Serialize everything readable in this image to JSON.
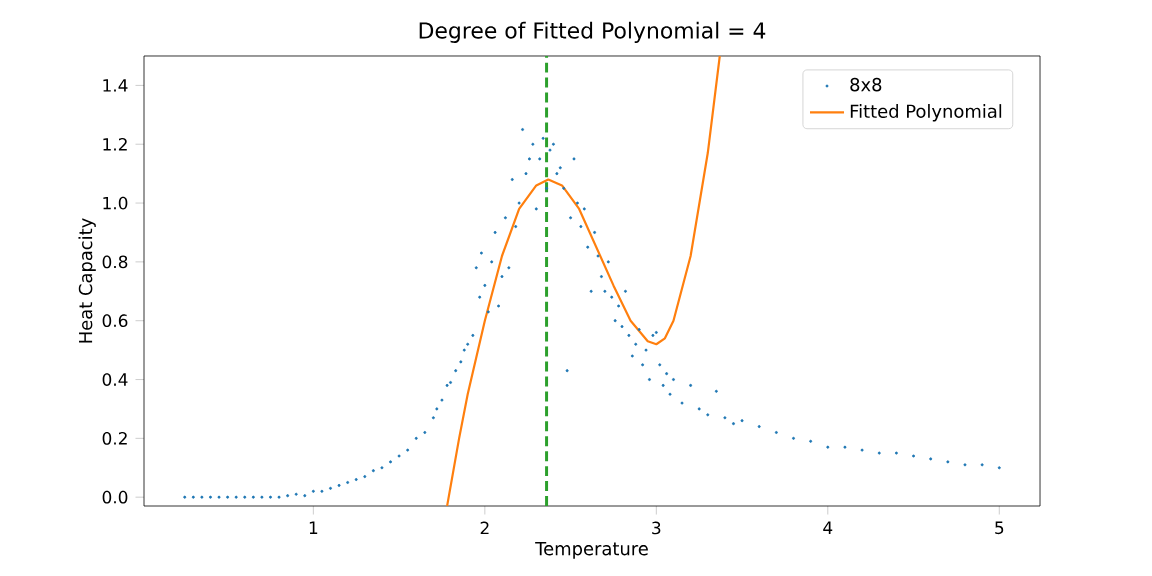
{
  "chart_data": {
    "type": "scatter",
    "title": "Degree of Fitted Polynomial = 4",
    "xlabel": "Temperature",
    "ylabel": "Heat Capacity",
    "xlim": [
      0.0125,
      5.2375
    ],
    "ylim": [
      -0.03,
      1.5
    ],
    "xticks": [
      1,
      2,
      3,
      4,
      5
    ],
    "yticks": [
      {
        "value": 0,
        "label": "0.0"
      },
      {
        "value": 0.2,
        "label": "0.2"
      },
      {
        "value": 0.4,
        "label": "0.4"
      },
      {
        "value": 0.6,
        "label": "0.6"
      },
      {
        "value": 0.8,
        "label": "0.8"
      },
      {
        "value": 1.0,
        "label": "1.0"
      },
      {
        "value": 1.2,
        "label": "1.2"
      },
      {
        "value": 1.4,
        "label": "1.4"
      }
    ],
    "legend": "top right",
    "grid": false,
    "series": [
      {
        "name": "8x8",
        "marker": "circle",
        "color": "#1f77b4",
        "x": [
          0.25,
          0.3,
          0.35,
          0.4,
          0.45,
          0.5,
          0.55,
          0.6,
          0.65,
          0.7,
          0.75,
          0.8,
          0.85,
          0.9,
          0.95,
          1.0,
          1.05,
          1.1,
          1.15,
          1.2,
          1.25,
          1.3,
          1.35,
          1.4,
          1.45,
          1.5,
          1.55,
          1.6,
          1.65,
          1.7,
          1.72,
          1.75,
          1.78,
          1.8,
          1.83,
          1.86,
          1.88,
          1.9,
          1.93,
          1.95,
          1.97,
          1.98,
          2.0,
          2.02,
          2.04,
          2.06,
          2.08,
          2.1,
          2.12,
          2.14,
          2.16,
          2.18,
          2.2,
          2.22,
          2.24,
          2.26,
          2.28,
          2.3,
          2.32,
          2.34,
          2.36,
          2.38,
          2.4,
          2.42,
          2.44,
          2.46,
          2.48,
          2.5,
          2.52,
          2.54,
          2.56,
          2.58,
          2.6,
          2.62,
          2.64,
          2.66,
          2.68,
          2.7,
          2.72,
          2.74,
          2.76,
          2.78,
          2.8,
          2.82,
          2.84,
          2.86,
          2.88,
          2.9,
          2.92,
          2.94,
          2.96,
          2.98,
          3.0,
          3.02,
          3.04,
          3.06,
          3.08,
          3.1,
          3.15,
          3.2,
          3.25,
          3.3,
          3.35,
          3.4,
          3.45,
          3.5,
          3.6,
          3.7,
          3.8,
          3.9,
          4.0,
          4.1,
          4.2,
          4.3,
          4.4,
          4.5,
          4.6,
          4.7,
          4.8,
          4.9,
          5.0
        ],
        "values": [
          0,
          0,
          0,
          0,
          0,
          0,
          0,
          0,
          0,
          0,
          0,
          0,
          0.005,
          0.01,
          0.005,
          0.02,
          0.02,
          0.03,
          0.04,
          0.05,
          0.06,
          0.07,
          0.09,
          0.1,
          0.12,
          0.14,
          0.16,
          0.2,
          0.22,
          0.27,
          0.3,
          0.33,
          0.38,
          0.39,
          0.43,
          0.46,
          0.5,
          0.52,
          0.55,
          0.78,
          0.68,
          0.83,
          0.72,
          0.63,
          0.8,
          0.9,
          0.65,
          0.75,
          0.95,
          0.78,
          1.08,
          0.92,
          1.0,
          1.25,
          1.1,
          1.15,
          1.2,
          0.98,
          1.15,
          1.22,
          1.05,
          1.18,
          1.2,
          1.1,
          1.12,
          1.05,
          0.43,
          0.95,
          1.15,
          1.0,
          0.92,
          0.98,
          0.85,
          0.7,
          0.9,
          0.82,
          0.75,
          0.7,
          0.8,
          0.68,
          0.6,
          0.65,
          0.58,
          0.7,
          0.55,
          0.48,
          0.52,
          0.57,
          0.45,
          0.5,
          0.4,
          0.55,
          0.56,
          0.45,
          0.38,
          0.42,
          0.35,
          0.4,
          0.32,
          0.38,
          0.3,
          0.28,
          0.36,
          0.27,
          0.25,
          0.26,
          0.24,
          0.22,
          0.2,
          0.19,
          0.17,
          0.17,
          0.16,
          0.15,
          0.15,
          0.14,
          0.13,
          0.12,
          0.11,
          0.11,
          0.1
        ]
      },
      {
        "name": "Fitted Polynomial",
        "type": "line",
        "marker": "none",
        "line_style": "solid",
        "color": "#ff7f0e",
        "x": [
          1.78,
          1.85,
          1.9,
          2.0,
          2.1,
          2.2,
          2.3,
          2.37,
          2.45,
          2.55,
          2.65,
          2.75,
          2.85,
          2.95,
          3.0,
          3.05,
          3.1,
          3.2,
          3.3,
          3.37
        ],
        "values": [
          -0.03,
          0.2,
          0.35,
          0.6,
          0.82,
          0.98,
          1.06,
          1.08,
          1.06,
          0.98,
          0.85,
          0.72,
          0.6,
          0.53,
          0.52,
          0.54,
          0.6,
          0.82,
          1.17,
          1.5
        ]
      }
    ],
    "ref_lines": [
      {
        "axis": "x",
        "value": 2.36,
        "color": "#2ca02c",
        "line_style": "dashed"
      }
    ]
  }
}
